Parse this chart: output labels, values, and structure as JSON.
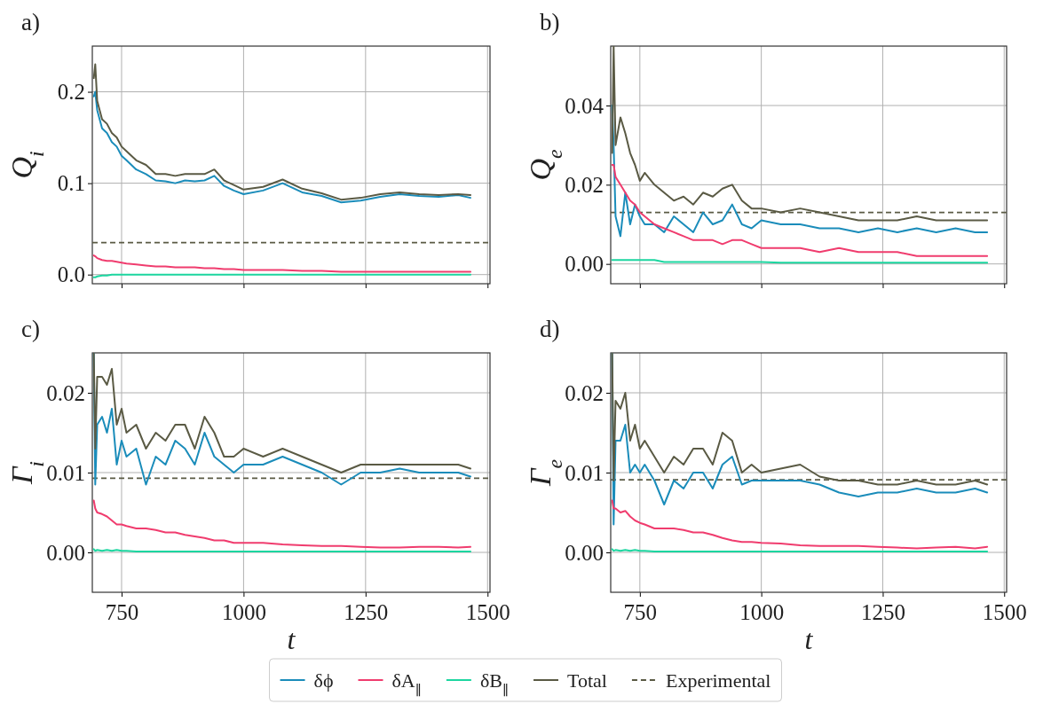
{
  "chart_data": [
    {
      "type": "line",
      "annotations": [
        "a)"
      ],
      "ylabel": "Q$_{i}$",
      "tick_labels": "y",
      "grid": true,
      "xlim": [
        690,
        1505
      ],
      "xticks": [
        750,
        1000,
        1250,
        1500
      ],
      "ylim": [
        -0.01,
        0.25
      ],
      "yticks": [
        {
          "value": 0,
          "label": "0.0"
        },
        {
          "value": 0.1,
          "label": "0.1"
        },
        {
          "value": 0.2,
          "label": "0.2"
        }
      ],
      "x": [
        693,
        696,
        700,
        710,
        720,
        730,
        740,
        750,
        760,
        780,
        800,
        820,
        840,
        860,
        880,
        900,
        920,
        940,
        960,
        980,
        1000,
        1040,
        1080,
        1120,
        1160,
        1200,
        1240,
        1280,
        1320,
        1360,
        1400,
        1440,
        1465
      ],
      "series": [
        {
          "color": "#1a8cba",
          "values": [
            0.195,
            0.2,
            0.18,
            0.16,
            0.155,
            0.145,
            0.14,
            0.13,
            0.125,
            0.115,
            0.11,
            0.103,
            0.102,
            0.1,
            0.103,
            0.102,
            0.103,
            0.108,
            0.097,
            0.092,
            0.088,
            0.092,
            0.1,
            0.09,
            0.086,
            0.079,
            0.081,
            0.085,
            0.088,
            0.086,
            0.085,
            0.087,
            0.084
          ]
        },
        {
          "color": "#f03c6e",
          "values": [
            0.021,
            0.02,
            0.018,
            0.016,
            0.015,
            0.015,
            0.014,
            0.013,
            0.012,
            0.011,
            0.01,
            0.009,
            0.009,
            0.008,
            0.008,
            0.008,
            0.007,
            0.007,
            0.006,
            0.006,
            0.005,
            0.005,
            0.005,
            0.004,
            0.004,
            0.003,
            0.003,
            0.003,
            0.003,
            0.003,
            0.003,
            0.003,
            0.003
          ]
        },
        {
          "color": "#1cd6a0",
          "values": [
            -0.003,
            -0.003,
            -0.002,
            -0.001,
            -0.001,
            0,
            0,
            0,
            0,
            0,
            0,
            0,
            0,
            0,
            0,
            0,
            0,
            0,
            0,
            0,
            0,
            0,
            0,
            0,
            0,
            0,
            0,
            0,
            0,
            0,
            0,
            0,
            0
          ]
        },
        {
          "color": "#5a5a44",
          "values": [
            0.215,
            0.23,
            0.19,
            0.17,
            0.165,
            0.155,
            0.15,
            0.14,
            0.135,
            0.125,
            0.12,
            0.11,
            0.11,
            0.108,
            0.11,
            0.11,
            0.11,
            0.115,
            0.103,
            0.098,
            0.093,
            0.096,
            0.104,
            0.094,
            0.089,
            0.082,
            0.084,
            0.088,
            0.09,
            0.088,
            0.087,
            0.088,
            0.087
          ]
        }
      ],
      "ref_lines": [
        {
          "axis": "y",
          "value": 0.035,
          "color": "#5a5a44",
          "line_style": "dashed"
        }
      ]
    },
    {
      "type": "line",
      "annotations": [
        "b)"
      ],
      "ylabel": "Q$_{e}$",
      "tick_labels": "y",
      "grid": true,
      "xlim": [
        690,
        1505
      ],
      "xticks": [
        750,
        1000,
        1250,
        1500
      ],
      "ylim": [
        -0.005,
        0.055
      ],
      "yticks": [
        {
          "value": 0,
          "label": "0.00"
        },
        {
          "value": 0.02,
          "label": "0.02"
        },
        {
          "value": 0.04,
          "label": "0.04"
        }
      ],
      "x": [
        693,
        696,
        700,
        710,
        720,
        730,
        740,
        750,
        760,
        780,
        800,
        820,
        840,
        860,
        880,
        900,
        920,
        940,
        960,
        980,
        1000,
        1040,
        1080,
        1120,
        1160,
        1200,
        1240,
        1280,
        1320,
        1360,
        1400,
        1440,
        1465
      ],
      "series": [
        {
          "color": "#1a8cba",
          "values": [
            0.04,
            0.03,
            0.012,
            0.007,
            0.018,
            0.01,
            0.015,
            0.012,
            0.01,
            0.01,
            0.008,
            0.012,
            0.01,
            0.008,
            0.013,
            0.01,
            0.011,
            0.015,
            0.01,
            0.009,
            0.011,
            0.01,
            0.01,
            0.009,
            0.009,
            0.008,
            0.009,
            0.008,
            0.009,
            0.008,
            0.009,
            0.008,
            0.008
          ]
        },
        {
          "color": "#f03c6e",
          "values": [
            0.025,
            0.025,
            0.022,
            0.02,
            0.018,
            0.016,
            0.015,
            0.013,
            0.012,
            0.01,
            0.009,
            0.008,
            0.007,
            0.006,
            0.006,
            0.006,
            0.005,
            0.006,
            0.006,
            0.005,
            0.004,
            0.004,
            0.004,
            0.003,
            0.004,
            0.003,
            0.003,
            0.003,
            0.002,
            0.002,
            0.002,
            0.002,
            0.002
          ]
        },
        {
          "color": "#1cd6a0",
          "values": [
            0.001,
            0.001,
            0.001,
            0.001,
            0.001,
            0.001,
            0.001,
            0.001,
            0.001,
            0.001,
            0.0005,
            0.0005,
            0.0005,
            0.0005,
            0.0005,
            0.0005,
            0.0005,
            0.0005,
            0.0005,
            0.0005,
            0.0005,
            0.0003,
            0.0003,
            0.0003,
            0.0003,
            0.0003,
            0.0003,
            0.0003,
            0.0003,
            0.0003,
            0.0003,
            0.0003,
            0.0003
          ]
        },
        {
          "color": "#5a5a44",
          "values": [
            0.028,
            0.055,
            0.03,
            0.037,
            0.033,
            0.028,
            0.025,
            0.021,
            0.023,
            0.02,
            0.018,
            0.016,
            0.017,
            0.015,
            0.018,
            0.017,
            0.019,
            0.02,
            0.016,
            0.014,
            0.014,
            0.013,
            0.014,
            0.013,
            0.012,
            0.011,
            0.011,
            0.011,
            0.012,
            0.011,
            0.011,
            0.011,
            0.011
          ]
        }
      ],
      "ref_lines": [
        {
          "axis": "y",
          "value": 0.013,
          "color": "#5a5a44",
          "line_style": "dashed"
        }
      ]
    },
    {
      "type": "line",
      "annotations": [
        "c)"
      ],
      "ylabel": "Γ$_{i}$",
      "xlabel": "t",
      "grid": true,
      "xlim": [
        690,
        1505
      ],
      "xticks": [
        750,
        1000,
        1250,
        1500
      ],
      "ylim": [
        -0.005,
        0.025
      ],
      "yticks": [
        {
          "value": 0,
          "label": "0.00"
        },
        {
          "value": 0.01,
          "label": "0.01"
        },
        {
          "value": 0.02,
          "label": "0.02"
        }
      ],
      "x": [
        693,
        696,
        700,
        710,
        720,
        730,
        740,
        750,
        760,
        780,
        800,
        820,
        840,
        860,
        880,
        900,
        920,
        940,
        960,
        980,
        1000,
        1040,
        1080,
        1120,
        1160,
        1200,
        1240,
        1280,
        1320,
        1360,
        1400,
        1440,
        1465
      ],
      "series": [
        {
          "color": "#1a8cba",
          "values": [
            0.025,
            0.0085,
            0.016,
            0.017,
            0.015,
            0.018,
            0.011,
            0.014,
            0.012,
            0.013,
            0.0085,
            0.012,
            0.011,
            0.014,
            0.013,
            0.011,
            0.015,
            0.012,
            0.011,
            0.01,
            0.011,
            0.011,
            0.012,
            0.011,
            0.01,
            0.0085,
            0.01,
            0.01,
            0.0105,
            0.01,
            0.01,
            0.01,
            0.0095
          ]
        },
        {
          "color": "#f03c6e",
          "values": [
            0.0065,
            0.0055,
            0.005,
            0.0048,
            0.0045,
            0.004,
            0.0035,
            0.0035,
            0.0033,
            0.003,
            0.003,
            0.0028,
            0.0025,
            0.0025,
            0.0022,
            0.002,
            0.0018,
            0.0015,
            0.0015,
            0.0012,
            0.0012,
            0.0012,
            0.001,
            0.0009,
            0.0008,
            0.0008,
            0.0007,
            0.0006,
            0.0006,
            0.0007,
            0.0007,
            0.0006,
            0.0007
          ]
        },
        {
          "color": "#1cd6a0",
          "values": [
            0.0004,
            0.0002,
            0.0003,
            0.0002,
            0.0003,
            0.0002,
            0.0003,
            0.0002,
            0.0002,
            0.0001,
            0.0001,
            0.0001,
            0.0001,
            0.0001,
            0.0001,
            0.0001,
            0.0001,
            0.0001,
            0.0001,
            0.0001,
            0.0001,
            0.0001,
            0.0001,
            0.0001,
            0.0001,
            0.0001,
            0.0001,
            0.0001,
            0.0001,
            0.0001,
            0.0001,
            0.0001,
            0.0001
          ]
        },
        {
          "color": "#5a5a44",
          "values": [
            0.025,
            0.013,
            0.022,
            0.022,
            0.021,
            0.023,
            0.016,
            0.018,
            0.015,
            0.016,
            0.013,
            0.015,
            0.014,
            0.016,
            0.016,
            0.013,
            0.017,
            0.015,
            0.012,
            0.012,
            0.013,
            0.012,
            0.013,
            0.012,
            0.011,
            0.01,
            0.011,
            0.011,
            0.011,
            0.011,
            0.011,
            0.011,
            0.0105
          ]
        }
      ],
      "ref_lines": [
        {
          "axis": "y",
          "value": 0.0093,
          "color": "#5a5a44",
          "line_style": "dashed"
        }
      ]
    },
    {
      "type": "line",
      "annotations": [
        "d)"
      ],
      "ylabel": "Γ$_{e}$",
      "xlabel": "t",
      "grid": true,
      "legend": "bottom",
      "xlim": [
        690,
        1505
      ],
      "xticks": [
        750,
        1000,
        1250,
        1500
      ],
      "ylim": [
        -0.005,
        0.025
      ],
      "yticks": [
        {
          "value": 0,
          "label": "0.00"
        },
        {
          "value": 0.01,
          "label": "0.01"
        },
        {
          "value": 0.02,
          "label": "0.02"
        }
      ],
      "x": [
        693,
        696,
        700,
        710,
        720,
        730,
        740,
        750,
        760,
        780,
        800,
        820,
        840,
        860,
        880,
        900,
        920,
        940,
        960,
        980,
        1000,
        1040,
        1080,
        1120,
        1160,
        1200,
        1240,
        1280,
        1320,
        1360,
        1400,
        1440,
        1465
      ],
      "series": [
        {
          "name": "δϕ",
          "color": "#1a8cba",
          "values": [
            0.025,
            0.0035,
            0.014,
            0.014,
            0.016,
            0.01,
            0.011,
            0.01,
            0.011,
            0.009,
            0.006,
            0.009,
            0.008,
            0.01,
            0.01,
            0.008,
            0.011,
            0.012,
            0.0085,
            0.009,
            0.009,
            0.009,
            0.009,
            0.0085,
            0.0075,
            0.007,
            0.0075,
            0.0075,
            0.008,
            0.0075,
            0.0075,
            0.008,
            0.0075
          ]
        },
        {
          "name": "δA$_{∥}$",
          "color": "#f03c6e",
          "values": [
            0.0065,
            0.0055,
            0.0055,
            0.005,
            0.0052,
            0.0045,
            0.004,
            0.0037,
            0.0035,
            0.003,
            0.003,
            0.003,
            0.0028,
            0.0025,
            0.0025,
            0.0022,
            0.0018,
            0.0015,
            0.0013,
            0.0013,
            0.0012,
            0.0011,
            0.0009,
            0.0008,
            0.0008,
            0.0008,
            0.0007,
            0.0006,
            0.0005,
            0.0006,
            0.0007,
            0.0005,
            0.0007
          ]
        },
        {
          "name": "δB$_{∥}$",
          "color": "#1cd6a0",
          "values": [
            0.0004,
            0.0002,
            0.0003,
            0.0002,
            0.0003,
            0.0002,
            0.0003,
            0.0002,
            0.0002,
            0.0001,
            0.0001,
            0.0001,
            0.0001,
            0.0001,
            0.0001,
            0.0001,
            0.0001,
            0.0001,
            0.0001,
            0.0001,
            0.0001,
            0.0001,
            0.0001,
            0.0001,
            0.0001,
            0.0001,
            0.0001,
            0.0001,
            0.0001,
            0.0001,
            0.0001,
            0.0001,
            0.0001
          ]
        },
        {
          "name": "Total",
          "color": "#5a5a44",
          "values": [
            0.025,
            0.009,
            0.019,
            0.018,
            0.02,
            0.014,
            0.016,
            0.013,
            0.014,
            0.012,
            0.01,
            0.012,
            0.011,
            0.013,
            0.013,
            0.011,
            0.015,
            0.014,
            0.01,
            0.011,
            0.01,
            0.0105,
            0.011,
            0.0095,
            0.009,
            0.009,
            0.0085,
            0.0085,
            0.009,
            0.0085,
            0.0085,
            0.009,
            0.0085
          ]
        }
      ],
      "ref_lines": [
        {
          "axis": "y",
          "value": 0.0091,
          "label": "Experimental",
          "color": "#5a5a44",
          "line_style": "dashed"
        }
      ]
    }
  ]
}
